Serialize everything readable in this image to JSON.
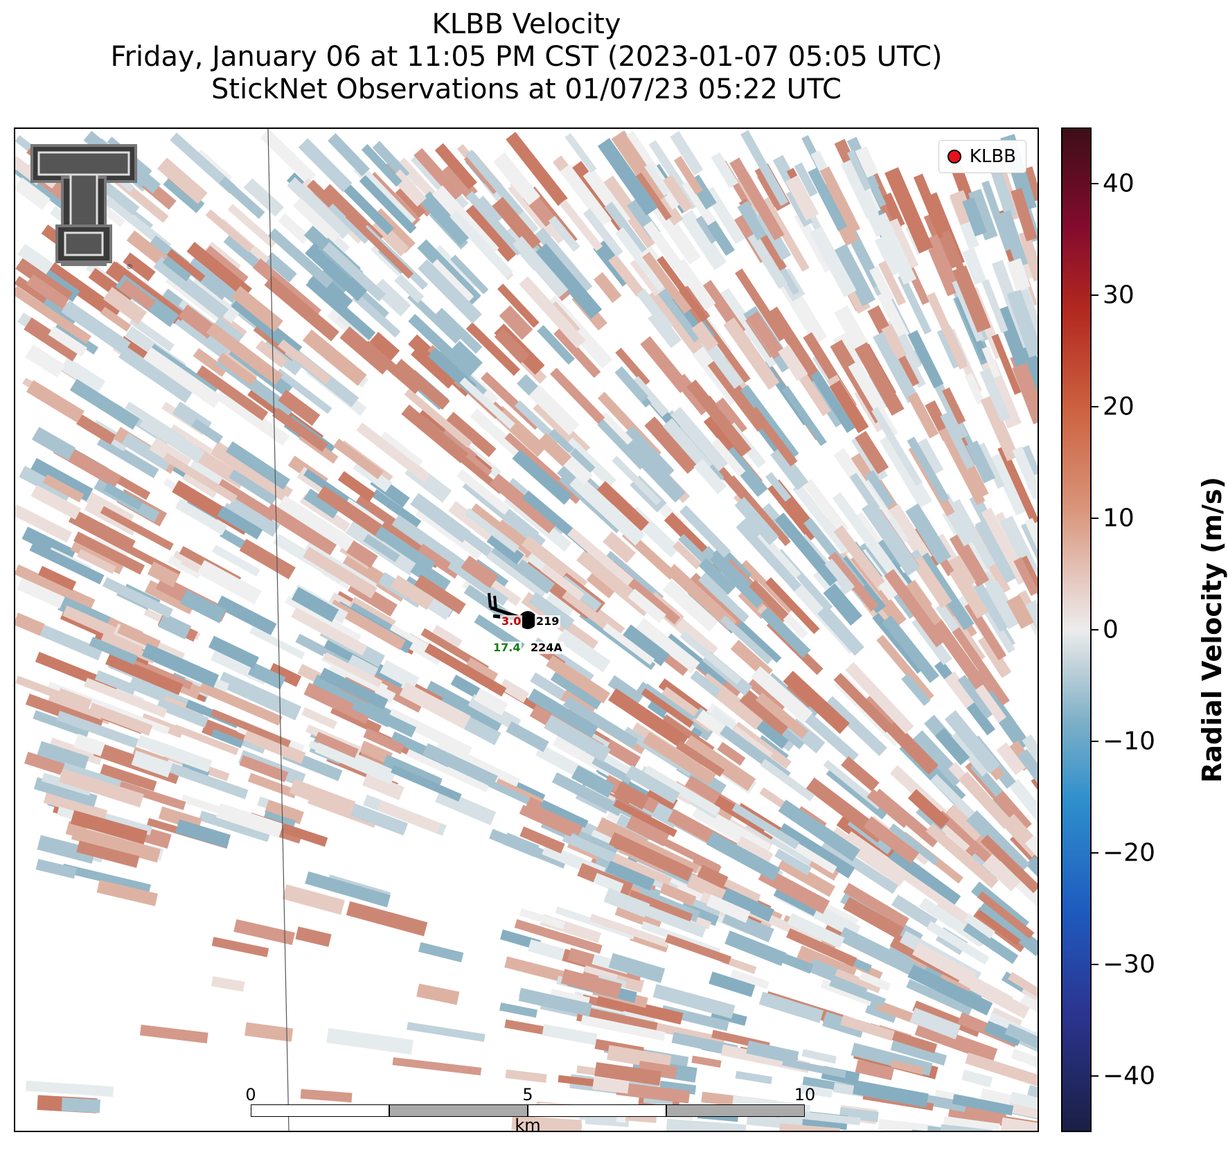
{
  "title": {
    "line1": "KLBB Velocity",
    "line2": "Friday, January 06 at 11:05 PM CST (2023-01-07 05:05 UTC)",
    "line3": "StickNet Observations at 01/07/23 05:22 UTC"
  },
  "legend": {
    "label": "KLBB",
    "marker_color": "#e8111b"
  },
  "logo": {
    "icon": "texas-tech-double-t-logo",
    "registered": "®"
  },
  "stations": {
    "top_left_value": "3.0",
    "top_left_color": "#c00000",
    "top_right_id": "219",
    "bottom_left_value": "17.4",
    "bottom_left_color": "#1a7a1a",
    "bottom_right_id": "224A"
  },
  "scalebar": {
    "ticks": [
      "0",
      "5",
      "10"
    ],
    "unit": "km"
  },
  "colorbar": {
    "title": "Radial Velocity (m/s)",
    "min": -45,
    "max": 45,
    "ticks": [
      "40",
      "30",
      "20",
      "10",
      "0",
      "−10",
      "−20",
      "−30",
      "−40"
    ],
    "tick_values": [
      40,
      30,
      20,
      10,
      0,
      -10,
      -20,
      -30,
      -40
    ],
    "colors": {
      "negative_strong": "#1b1f45",
      "negative_mid": "#7fb0c8",
      "neutral": "#ececec",
      "positive_mid": "#d9957b",
      "positive_strong": "#3d0e17"
    }
  }
}
